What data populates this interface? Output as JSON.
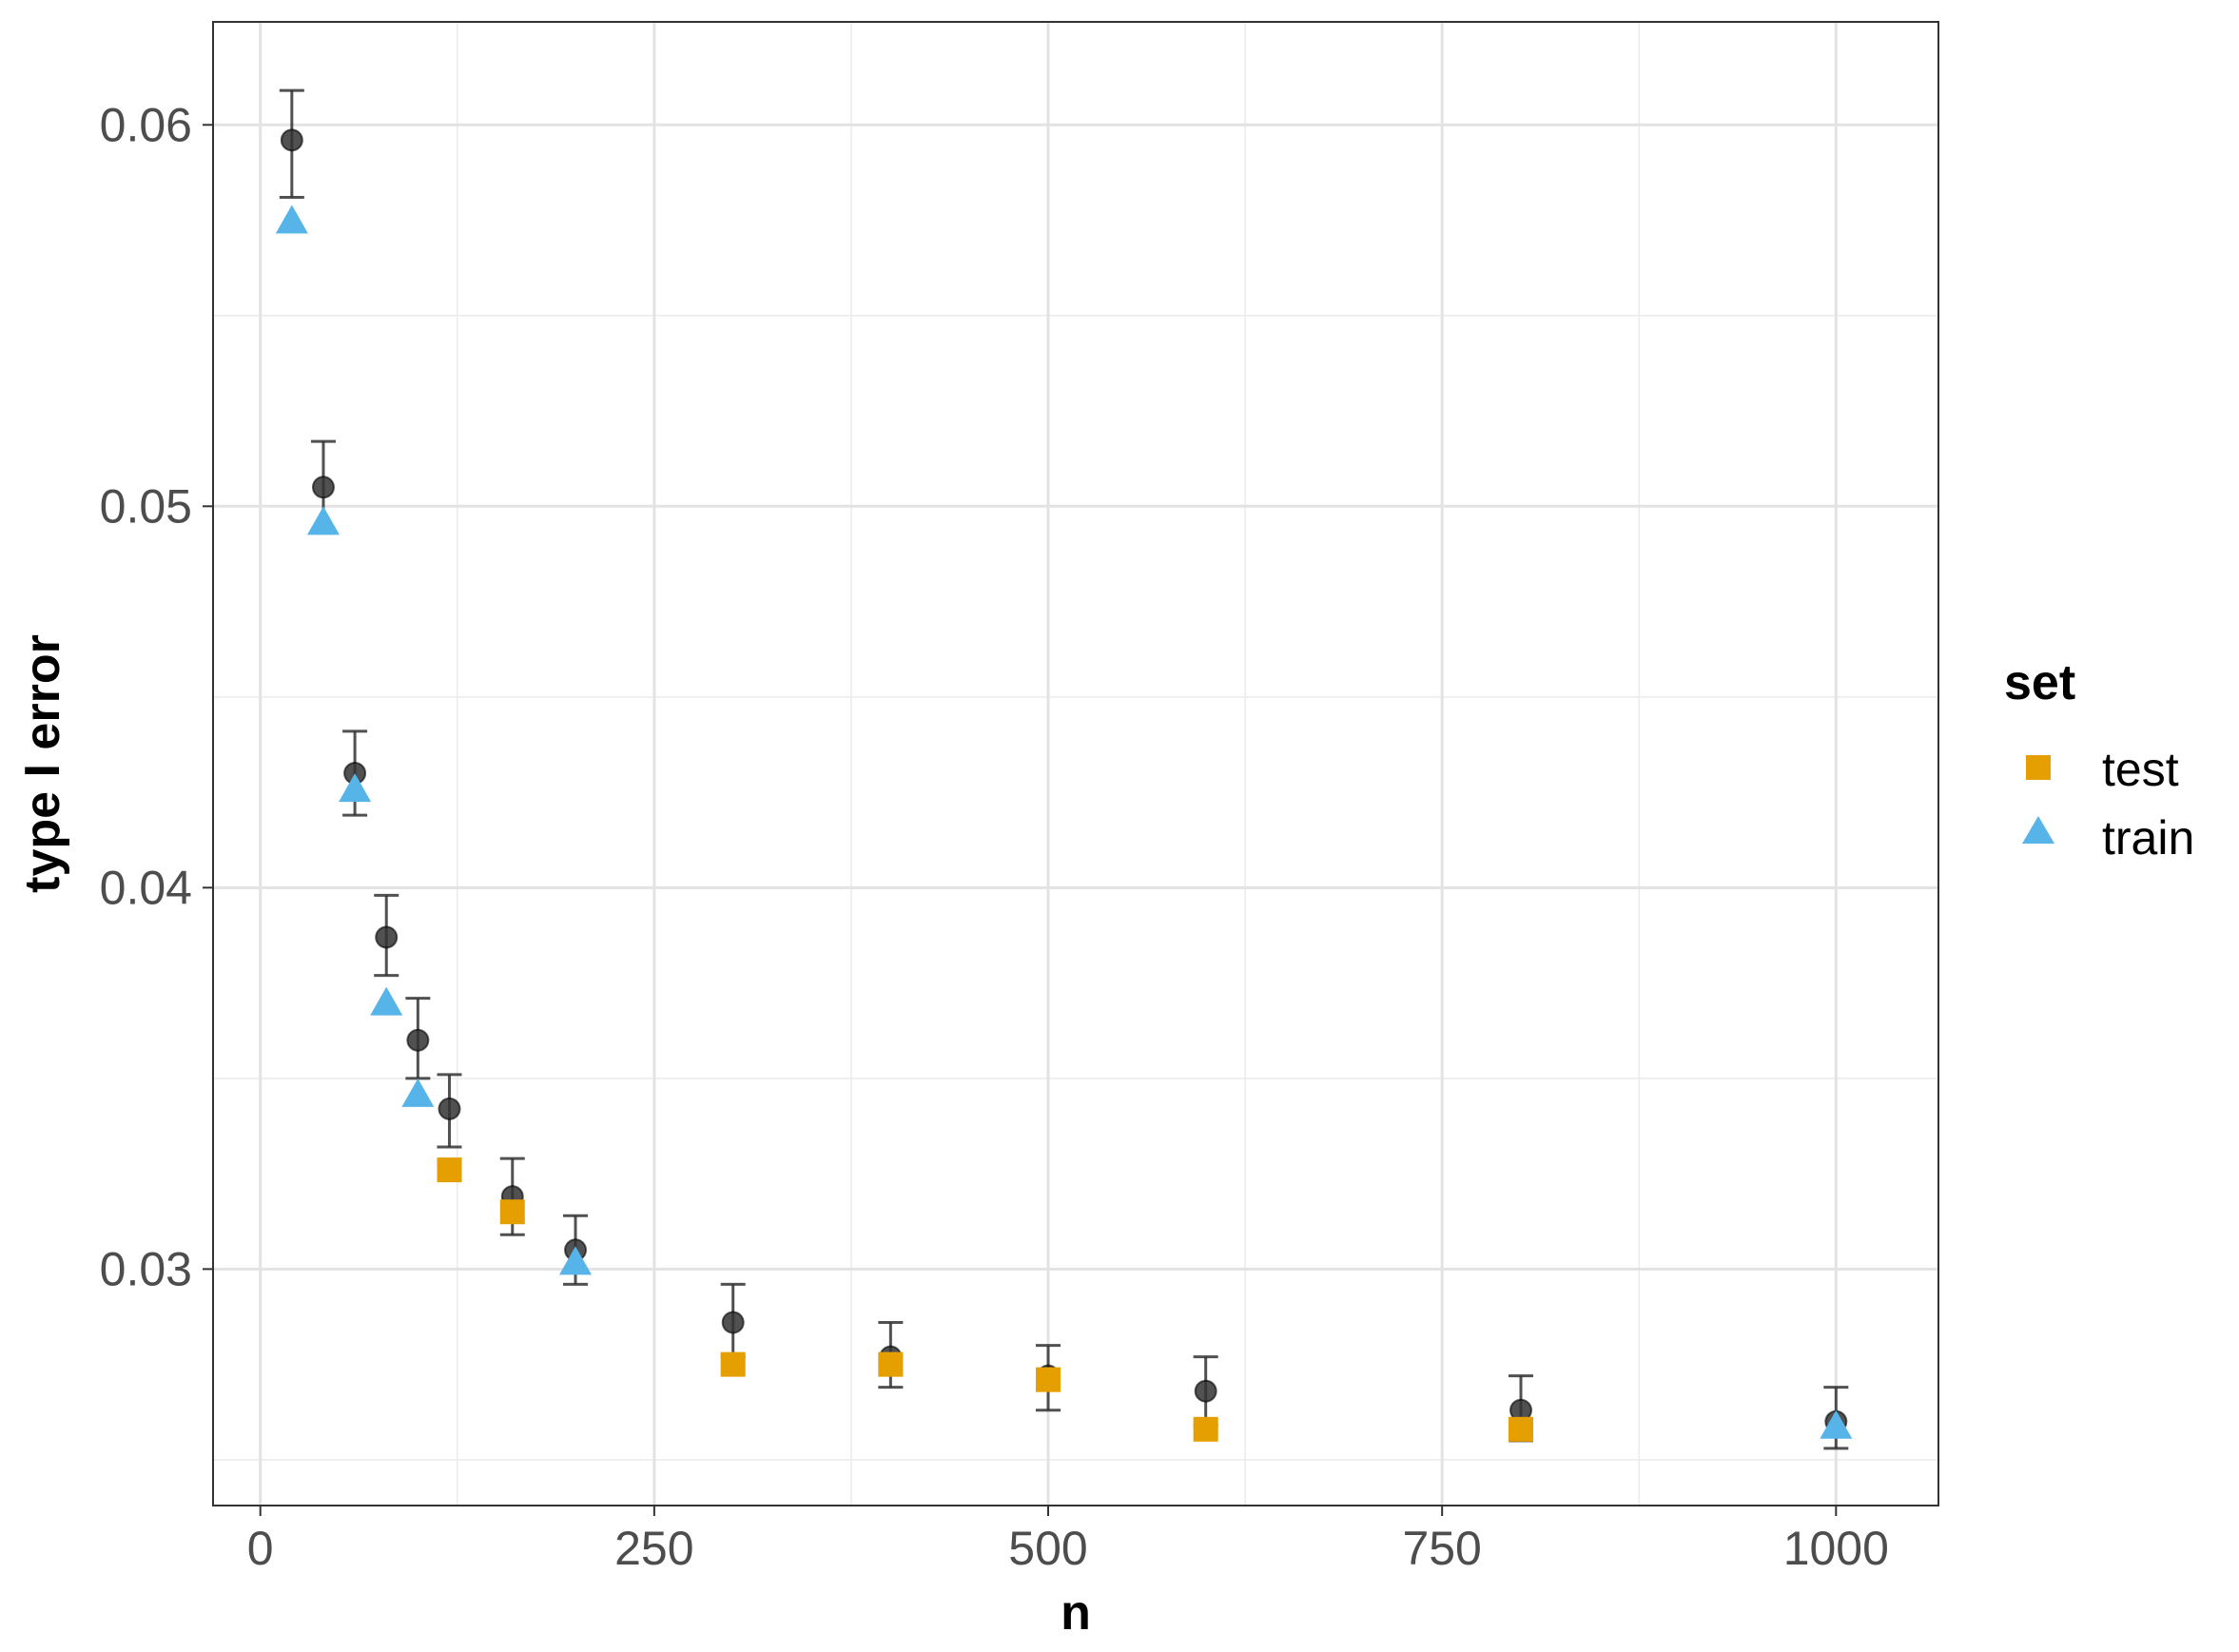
{
  "chart_data": {
    "type": "scatter",
    "xlabel": "n",
    "ylabel": "type I error",
    "xlim": [
      -30,
      1065
    ],
    "ylim": [
      0.0238,
      0.0627
    ],
    "x_ticks": [
      0,
      250,
      500,
      750,
      1000
    ],
    "x_tick_labels": [
      "0",
      "250",
      "500",
      "750",
      "1000"
    ],
    "y_ticks": [
      0.03,
      0.04,
      0.05,
      0.06
    ],
    "y_tick_labels": [
      "0.03",
      "0.04",
      "0.05",
      "0.06"
    ],
    "grid": true,
    "legend": {
      "title": "set",
      "position": "right",
      "entries": [
        {
          "label": "test",
          "shape": "square",
          "color": "#E69F00"
        },
        {
          "label": "train",
          "shape": "triangle",
          "color": "#56B4E9"
        }
      ]
    },
    "series": [
      {
        "shape": "circle",
        "color": "#333333",
        "points": [
          {
            "x": 20,
            "y": 0.0596,
            "lo": 0.0581,
            "hi": 0.0609
          },
          {
            "x": 40,
            "y": 0.0505,
            "lo": 0.0494,
            "hi": 0.0517
          },
          {
            "x": 60,
            "y": 0.043,
            "lo": 0.0419,
            "hi": 0.0441
          },
          {
            "x": 80,
            "y": 0.0387,
            "lo": 0.0377,
            "hi": 0.0398
          },
          {
            "x": 100,
            "y": 0.036,
            "lo": 0.035,
            "hi": 0.0371
          },
          {
            "x": 120,
            "y": 0.0342,
            "lo": 0.0332,
            "hi": 0.0351
          },
          {
            "x": 160,
            "y": 0.0319,
            "lo": 0.0309,
            "hi": 0.0329
          },
          {
            "x": 200,
            "y": 0.0305,
            "lo": 0.0296,
            "hi": 0.0314
          },
          {
            "x": 300,
            "y": 0.0286,
            "lo": 0.0277,
            "hi": 0.0296
          },
          {
            "x": 400,
            "y": 0.0277,
            "lo": 0.0269,
            "hi": 0.0286
          },
          {
            "x": 500,
            "y": 0.0272,
            "lo": 0.0263,
            "hi": 0.028
          },
          {
            "x": 600,
            "y": 0.0268,
            "lo": 0.0259,
            "hi": 0.0277
          },
          {
            "x": 800,
            "y": 0.0263,
            "lo": 0.0255,
            "hi": 0.0272
          },
          {
            "x": 1000,
            "y": 0.026,
            "lo": 0.0253,
            "hi": 0.0269
          }
        ]
      },
      {
        "name": "test",
        "shape": "square",
        "color": "#E69F00",
        "points": [
          {
            "x": 120,
            "y": 0.0326
          },
          {
            "x": 160,
            "y": 0.0315
          },
          {
            "x": 300,
            "y": 0.0275
          },
          {
            "x": 400,
            "y": 0.0275
          },
          {
            "x": 500,
            "y": 0.0271
          },
          {
            "x": 600,
            "y": 0.0258
          },
          {
            "x": 800,
            "y": 0.0258
          }
        ]
      },
      {
        "name": "train",
        "shape": "triangle",
        "color": "#56B4E9",
        "points": [
          {
            "x": 20,
            "y": 0.0575
          },
          {
            "x": 40,
            "y": 0.0496
          },
          {
            "x": 60,
            "y": 0.0426
          },
          {
            "x": 80,
            "y": 0.037
          },
          {
            "x": 100,
            "y": 0.0346
          },
          {
            "x": 200,
            "y": 0.0302
          },
          {
            "x": 1000,
            "y": 0.0259
          }
        ]
      }
    ]
  }
}
